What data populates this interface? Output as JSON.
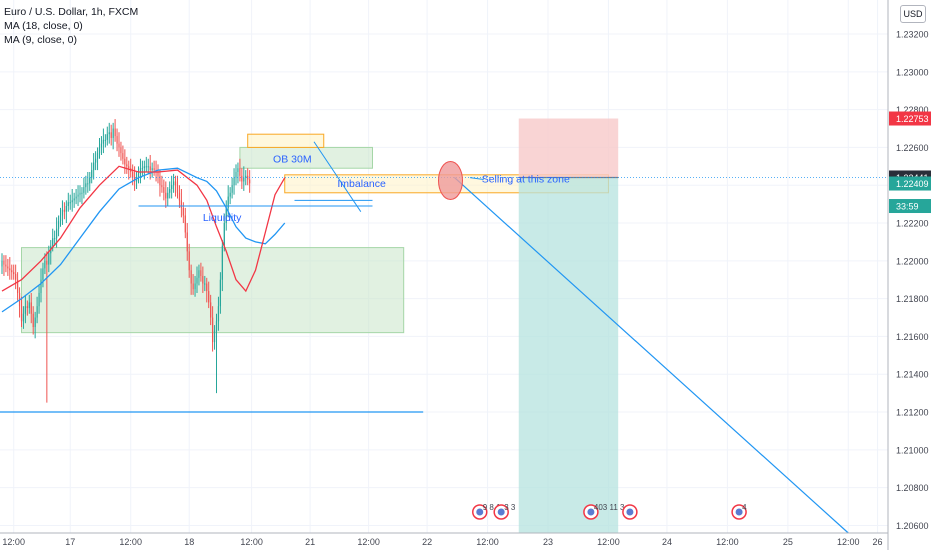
{
  "legend": {
    "title": "Euro / U.S. Dollar, 1h, FXCM",
    "ma1": "MA (18, close, 0)",
    "ma2": "MA (9, close, 0)"
  },
  "currency": "USD",
  "colors": {
    "bull": "#26a69a",
    "bear": "#ef5350",
    "ma18": "#2196f3",
    "ma9": "#f23645",
    "zone_green": "#c8e6c9",
    "zone_orange": "#f9a825",
    "stop_zone": "#f8c9c9",
    "target_zone": "#b6e3df",
    "text_blue": "#2962ff",
    "axis_text": "#434651"
  },
  "chart_data": {
    "type": "candlestick",
    "y_axis": {
      "min": 1.2056,
      "max": 1.2338,
      "ticks": [
        "1.23200",
        "1.23000",
        "1.22800",
        "1.22600",
        "1.22400",
        "1.22200",
        "1.22000",
        "1.21800",
        "1.21600",
        "1.21400",
        "1.21200",
        "1.21000",
        "1.20800",
        "1.20600"
      ]
    },
    "x_axis": {
      "ticks": [
        {
          "label": "12:00",
          "slot": 6
        },
        {
          "label": "17",
          "slot": 35
        },
        {
          "label": "12:00",
          "slot": 66
        },
        {
          "label": "18",
          "slot": 96
        },
        {
          "label": "12:00",
          "slot": 128
        },
        {
          "label": "21",
          "slot": 158
        },
        {
          "label": "12:00",
          "slot": 188
        },
        {
          "label": "22",
          "slot": 218
        },
        {
          "label": "12:00",
          "slot": 249
        },
        {
          "label": "23",
          "slot": 280
        },
        {
          "label": "12:00",
          "slot": 311
        },
        {
          "label": "24",
          "slot": 341
        },
        {
          "label": "12:00",
          "slot": 372
        },
        {
          "label": "25",
          "slot": 403
        },
        {
          "label": "12:00",
          "slot": 434
        },
        {
          "label": "26",
          "slot": 449
        }
      ]
    },
    "candles_close": [
      1.22,
      1.2198,
      1.2197,
      1.2196,
      1.2195,
      1.2194,
      1.2193,
      1.219,
      1.2183,
      1.2176,
      1.2168,
      1.2172,
      1.2176,
      1.2175,
      1.2178,
      1.2172,
      1.2165,
      1.217,
      1.2176,
      1.2183,
      1.219,
      1.2196,
      1.22,
      1.2198,
      1.2204,
      1.2208,
      1.2212,
      1.2212,
      1.2217,
      1.2221,
      1.2224,
      1.2227,
      1.2226,
      1.2229,
      1.2231,
      1.2231,
      1.2232,
      1.2233,
      1.2234,
      1.2235,
      1.2236,
      1.2236,
      1.2239,
      1.2241,
      1.2241,
      1.2244,
      1.2248,
      1.2252,
      1.2254,
      1.2257,
      1.226,
      1.2262,
      1.2264,
      1.2264,
      1.2267,
      1.2268,
      1.2265,
      1.227,
      1.2266,
      1.2262,
      1.226,
      1.2257,
      1.2254,
      1.2251,
      1.225,
      1.2249,
      1.2247,
      1.2244,
      1.2242,
      1.2244,
      1.2246,
      1.2249,
      1.2249,
      1.225,
      1.225,
      1.225,
      1.2248,
      1.2249,
      1.2248,
      1.2247,
      1.2245,
      1.224,
      1.2239,
      1.2236,
      1.2233,
      1.2236,
      1.2238,
      1.224,
      1.2242,
      1.224,
      1.2236,
      1.2232,
      1.2228,
      1.2224,
      1.2215,
      1.2205,
      1.2195,
      1.2188,
      1.2185,
      1.2188,
      1.2191,
      1.2195,
      1.2192,
      1.2188,
      1.2188,
      1.2184,
      1.2178,
      1.217,
      1.2157,
      1.2163,
      1.2168,
      1.2176,
      1.219,
      1.2208,
      1.222,
      1.2228,
      1.2234,
      1.2236,
      1.224,
      1.2244,
      1.2247,
      1.2249,
      1.2245,
      1.2242,
      1.2244,
      1.2245,
      1.2243,
      1.2241
    ],
    "ma18_anchors": [
      [
        0,
        1.2173
      ],
      [
        10,
        1.218
      ],
      [
        20,
        1.2188
      ],
      [
        30,
        1.2198
      ],
      [
        40,
        1.2212
      ],
      [
        50,
        1.2226
      ],
      [
        60,
        1.2238
      ],
      [
        70,
        1.2244
      ],
      [
        80,
        1.2248
      ],
      [
        90,
        1.2249
      ],
      [
        100,
        1.2244
      ],
      [
        105,
        1.2242
      ],
      [
        110,
        1.2237
      ],
      [
        115,
        1.2228
      ],
      [
        120,
        1.2218
      ],
      [
        125,
        1.2212
      ],
      [
        130,
        1.221
      ],
      [
        135,
        1.2209
      ],
      [
        140,
        1.2214
      ],
      [
        145,
        1.222
      ]
    ],
    "ma9_anchors": [
      [
        0,
        1.2184
      ],
      [
        10,
        1.219
      ],
      [
        20,
        1.22
      ],
      [
        30,
        1.2212
      ],
      [
        40,
        1.2228
      ],
      [
        50,
        1.224
      ],
      [
        60,
        1.225
      ],
      [
        70,
        1.2247
      ],
      [
        80,
        1.2247
      ],
      [
        90,
        1.2248
      ],
      [
        100,
        1.224
      ],
      [
        105,
        1.2232
      ],
      [
        110,
        1.2218
      ],
      [
        115,
        1.2205
      ],
      [
        120,
        1.219
      ],
      [
        125,
        1.2184
      ],
      [
        130,
        1.2195
      ],
      [
        135,
        1.2215
      ],
      [
        140,
        1.2235
      ],
      [
        145,
        1.2244
      ]
    ],
    "annotations": {
      "ob_label": "OB 30M",
      "imbalance_label": "Imbalance",
      "liquidity_label": "Liquidity",
      "selling_label": "Selling at this zone"
    },
    "price_labels": [
      {
        "price": "1.22753",
        "value": 1.22753,
        "color": "#f23645"
      },
      {
        "price": "1.22441",
        "value": 1.22441,
        "color": "#2a2e39"
      },
      {
        "price": "1.22409",
        "value": 1.22409,
        "color": "#26a69a"
      },
      {
        "price": "33:59",
        "value": 1.2229,
        "color": "#26a69a"
      }
    ],
    "entry_price": 1.22441,
    "stop_price": 1.22753,
    "liquidity_price": 1.212,
    "events": [
      {
        "slot": 245,
        "text": "9 8 1"
      },
      {
        "slot": 256,
        "text": "3 3"
      },
      {
        "slot": 302,
        "text": "403 11 3"
      },
      {
        "slot": 322,
        "text": ""
      },
      {
        "slot": 378,
        "text": "4"
      }
    ]
  }
}
